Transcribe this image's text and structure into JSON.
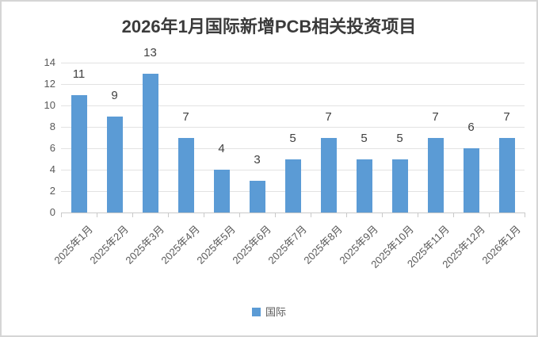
{
  "title": "2026年1月国际新增PCB相关投资项目",
  "legend": {
    "label": "国际",
    "swatch_color": "#5B9BD5"
  },
  "colors": {
    "bar": "#5B9BD5",
    "gridline": "#e2e2e2",
    "axis": "#c9c9c9",
    "title_text": "#3b3b3b",
    "axis_text": "#595959",
    "data_label_text": "#404040"
  },
  "chart_data": {
    "type": "bar",
    "title": "2026年1月国际新增PCB相关投资项目",
    "categories": [
      "2025年1月",
      "2025年2月",
      "2025年3月",
      "2025年4月",
      "2025年5月",
      "2025年6月",
      "2025年7月",
      "2025年8月",
      "2025年9月",
      "2025年10月",
      "2025年11月",
      "2025年12月",
      "2026年1月"
    ],
    "series": [
      {
        "name": "国际",
        "values": [
          11,
          9,
          13,
          7,
          4,
          3,
          5,
          7,
          5,
          5,
          7,
          6,
          7
        ]
      }
    ],
    "xlabel": "",
    "ylabel": "",
    "ylim": [
      0,
      14
    ],
    "ytick_step": 2,
    "grid": true,
    "data_labels": true,
    "legend_position": "bottom",
    "x_label_rotation_deg": 45
  }
}
